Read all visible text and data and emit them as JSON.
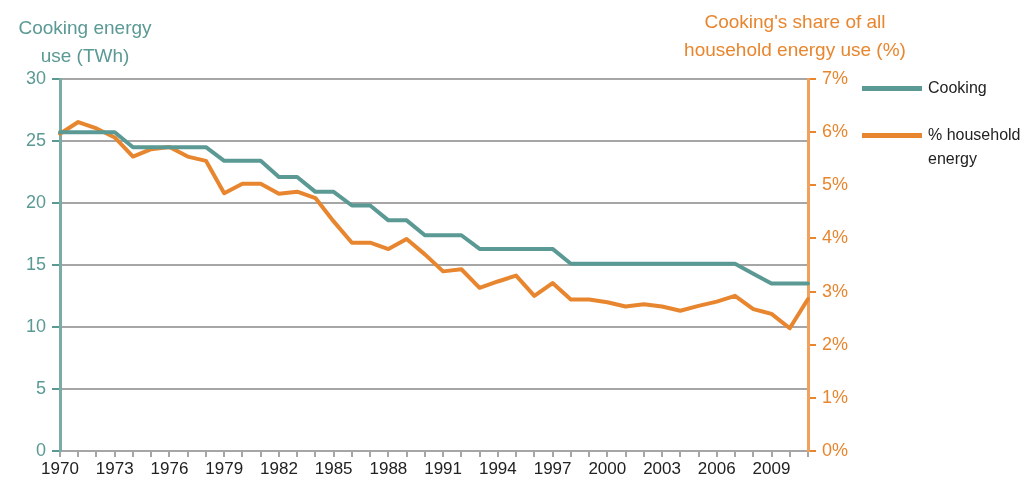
{
  "chart_data": {
    "type": "line",
    "ylabel": "Cooking energy use (TWh)",
    "y2label": "Cooking's share of all household energy use (%)",
    "categories": [
      "1970",
      null,
      null,
      "1973",
      null,
      null,
      "1976",
      null,
      null,
      "1979",
      null,
      null,
      "1982",
      null,
      null,
      "1985",
      null,
      null,
      "1988",
      null,
      null,
      "1991",
      null,
      null,
      "1994",
      null,
      null,
      "1997",
      null,
      null,
      "2000",
      null,
      null,
      "2003",
      null,
      null,
      "2006",
      null,
      null,
      "2009",
      null,
      null
    ],
    "ylim": [
      0,
      30
    ],
    "yticks": [
      0,
      5,
      10,
      15,
      20,
      25,
      30
    ],
    "y2lim": [
      0,
      7
    ],
    "y2ticks": [
      {
        "value": 0,
        "label": "0%"
      },
      {
        "value": 1,
        "label": "1%"
      },
      {
        "value": 2,
        "label": "2%"
      },
      {
        "value": 3,
        "label": "3%"
      },
      {
        "value": 4,
        "label": "4%"
      },
      {
        "value": 5,
        "label": "5%"
      },
      {
        "value": 6,
        "label": "6%"
      },
      {
        "value": 7,
        "label": "7%"
      }
    ],
    "grid": "y",
    "legend": "right",
    "marker": "none",
    "line_style": "solid",
    "series": [
      {
        "name": "Cooking",
        "color": "#5b9a94",
        "values": [
          25.7,
          25.7,
          25.7,
          25.7,
          24.5,
          24.5,
          24.5,
          24.5,
          24.5,
          23.4,
          23.4,
          23.4,
          22.1,
          22.1,
          20.9,
          20.9,
          19.8,
          19.8,
          18.6,
          18.6,
          17.4,
          17.4,
          17.4,
          16.3,
          16.3,
          16.3,
          16.3,
          16.3,
          15.1,
          15.1,
          15.1,
          15.1,
          15.1,
          15.1,
          15.1,
          15.1,
          15.1,
          15.1,
          14.3,
          13.5,
          13.5,
          13.5
        ]
      },
      {
        "name": "% household energy",
        "color": "#e8862f",
        "axis": "y2",
        "values": [
          5.97,
          6.19,
          6.07,
          5.9,
          5.54,
          5.68,
          5.72,
          5.54,
          5.46,
          4.85,
          5.03,
          5.03,
          4.84,
          4.88,
          4.76,
          4.32,
          3.92,
          3.92,
          3.8,
          3.99,
          3.7,
          3.38,
          3.42,
          3.07,
          3.19,
          3.3,
          2.92,
          3.16,
          2.85,
          2.85,
          2.8,
          2.72,
          2.76,
          2.72,
          2.64,
          2.73,
          2.81,
          2.92,
          2.67,
          2.58,
          2.31,
          2.86
        ]
      }
    ]
  }
}
